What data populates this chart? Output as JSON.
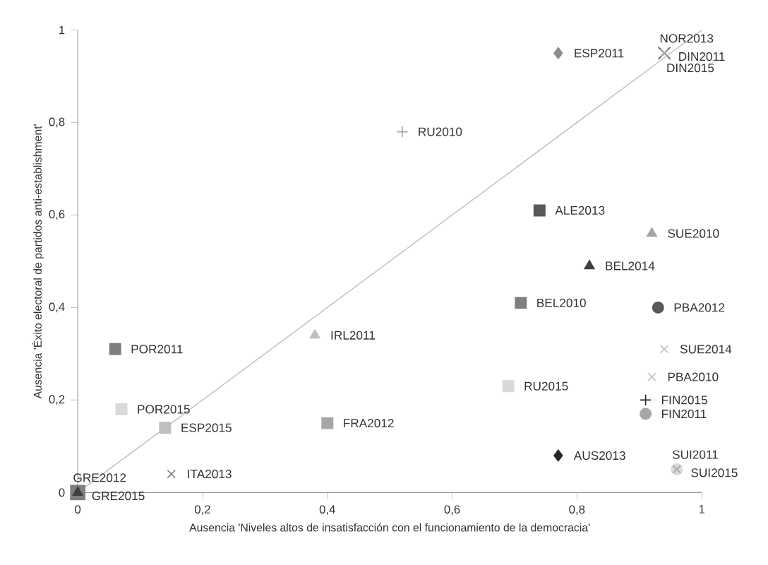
{
  "chart_data": {
    "type": "scatter",
    "xlabel": "Ausencia 'Niveles altos de insatisfacción con el funcionamiento de la democracia'",
    "ylabel": "Ausencia 'Éxito electoral de partidos anti-establishment'",
    "xlim": [
      0,
      1
    ],
    "ylim": [
      0,
      1
    ],
    "xticks": [
      0,
      {
        "value": 0.2,
        "label": "0,2"
      },
      {
        "value": 0.4,
        "label": "0,4"
      },
      {
        "value": 0.6,
        "label": "0,6"
      },
      {
        "value": 0.8,
        "label": "0,8"
      },
      1
    ],
    "yticks": [
      0,
      {
        "value": 0.2,
        "label": "0,2"
      },
      {
        "value": 0.4,
        "label": "0,4"
      },
      {
        "value": 0.6,
        "label": "0,6"
      },
      {
        "value": 0.8,
        "label": "0,8"
      },
      1
    ],
    "grid": false,
    "series": [
      {
        "type": "line",
        "color": "#bfbfbf",
        "marker": "none",
        "line_style": "solid",
        "x": [
          0,
          1
        ],
        "values": [
          0,
          1
        ]
      },
      {
        "name": "ESP2011",
        "color": "#8c8c8c",
        "marker": "diamond",
        "x": [
          0.77
        ],
        "values": [
          0.95
        ]
      },
      {
        "name": "NOR2013",
        "color": "#a6a6a6",
        "marker": "cross",
        "x": [
          0.94
        ],
        "values": [
          0.95
        ]
      },
      {
        "name": "DIN2011",
        "color": "#595959",
        "marker": "cross",
        "x": [
          0.94
        ],
        "values": [
          0.95
        ]
      },
      {
        "name": "DIN2015",
        "color": "#7f7f7f",
        "marker": "cross",
        "x": [
          0.94
        ],
        "values": [
          0.95
        ]
      },
      {
        "name": "RU2010",
        "color": "#a6a6a6",
        "marker": "plus",
        "x": [
          0.52
        ],
        "values": [
          0.78
        ]
      },
      {
        "name": "ALE2013",
        "color": "#595959",
        "marker": "square",
        "x": [
          0.74
        ],
        "values": [
          0.61
        ]
      },
      {
        "name": "SUE2010",
        "color": "#a6a6a6",
        "marker": "triangle",
        "x": [
          0.92
        ],
        "values": [
          0.56
        ]
      },
      {
        "name": "BEL2014",
        "color": "#404040",
        "marker": "triangle",
        "x": [
          0.82
        ],
        "values": [
          0.49
        ]
      },
      {
        "name": "BEL2010",
        "color": "#7f7f7f",
        "marker": "square",
        "x": [
          0.71
        ],
        "values": [
          0.41
        ]
      },
      {
        "name": "PBA2012",
        "color": "#595959",
        "marker": "circle",
        "x": [
          0.93
        ],
        "values": [
          0.4
        ]
      },
      {
        "name": "SUE2014",
        "color": "#bfbfbf",
        "marker": "cross",
        "x": [
          0.94
        ],
        "values": [
          0.31
        ]
      },
      {
        "name": "PBA2010",
        "color": "#bfbfbf",
        "marker": "cross",
        "x": [
          0.92
        ],
        "values": [
          0.25
        ]
      },
      {
        "name": "FIN2015",
        "color": "#262626",
        "marker": "plus",
        "x": [
          0.91
        ],
        "values": [
          0.2
        ]
      },
      {
        "name": "FIN2011",
        "color": "#a6a6a6",
        "marker": "circle",
        "x": [
          0.91
        ],
        "values": [
          0.17
        ]
      },
      {
        "name": "AUS2013",
        "color": "#262626",
        "marker": "diamond",
        "x": [
          0.77
        ],
        "values": [
          0.08
        ]
      },
      {
        "name": "SUI2011",
        "color": "#d9d9d9",
        "marker": "circle",
        "x": [
          0.96
        ],
        "values": [
          0.05
        ]
      },
      {
        "name": "SUI2015",
        "color": "#a6a6a6",
        "marker": "cross",
        "x": [
          0.96
        ],
        "values": [
          0.05
        ]
      },
      {
        "name": "RU2015",
        "color": "#d9d9d9",
        "marker": "square",
        "x": [
          0.69
        ],
        "values": [
          0.23
        ]
      },
      {
        "name": "IRL2011",
        "color": "#bfbfbf",
        "marker": "triangle",
        "x": [
          0.38
        ],
        "values": [
          0.34
        ]
      },
      {
        "name": "POR2011",
        "color": "#7f7f7f",
        "marker": "square",
        "x": [
          0.06
        ],
        "values": [
          0.31
        ]
      },
      {
        "name": "POR2015",
        "color": "#d9d9d9",
        "marker": "square",
        "x": [
          0.07
        ],
        "values": [
          0.18
        ]
      },
      {
        "name": "ESP2015",
        "color": "#bfbfbf",
        "marker": "square",
        "x": [
          0.14
        ],
        "values": [
          0.14
        ]
      },
      {
        "name": "FRA2012",
        "color": "#a6a6a6",
        "marker": "square",
        "x": [
          0.4
        ],
        "values": [
          0.15
        ]
      },
      {
        "name": "ITA2013",
        "color": "#7f7f7f",
        "marker": "cross",
        "x": [
          0.15
        ],
        "values": [
          0.04
        ]
      },
      {
        "name": "GRE2012",
        "color": "#404040",
        "marker": "triangle",
        "x": [
          0
        ],
        "values": [
          0
        ]
      },
      {
        "name": "GRE2015",
        "color": "#7f7f7f",
        "marker": "square",
        "x": [
          0
        ],
        "values": [
          0
        ]
      }
    ]
  }
}
